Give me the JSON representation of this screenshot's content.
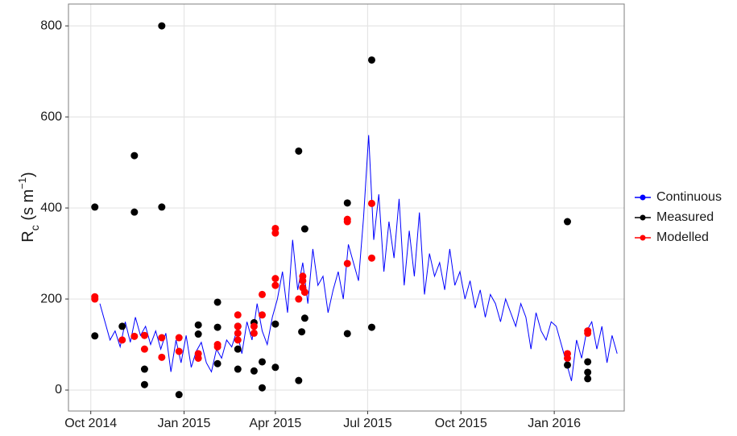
{
  "chart_data": {
    "type": "line",
    "ylabel_parts": [
      "R",
      "c",
      " (s m",
      "−1",
      ")"
    ],
    "xlim": [
      "2014-09-09",
      "2016-03-10"
    ],
    "xticks": [
      {
        "value": "2014-10-01",
        "label": "Oct 2014"
      },
      {
        "value": "2015-01-01",
        "label": "Jan 2015"
      },
      {
        "value": "2015-04-01",
        "label": "Apr 2015"
      },
      {
        "value": "2015-07-01",
        "label": "Jul 2015"
      },
      {
        "value": "2015-10-01",
        "label": "Oct 2015"
      },
      {
        "value": "2016-01-01",
        "label": "Jan 2016"
      }
    ],
    "ylim": [
      -46,
      848
    ],
    "yticks": [
      0,
      200,
      400,
      600,
      800
    ],
    "grid": true,
    "legend": "right",
    "series": [
      {
        "name": "Continuous",
        "color": "#0000ff",
        "mode": "line",
        "x": [
          "2014-10-10",
          "2014-10-15",
          "2014-10-20",
          "2014-10-25",
          "2014-10-30",
          "2014-11-04",
          "2014-11-09",
          "2014-11-14",
          "2014-11-19",
          "2014-11-24",
          "2014-11-29",
          "2014-12-04",
          "2014-12-09",
          "2014-12-14",
          "2014-12-19",
          "2014-12-24",
          "2014-12-29",
          "2015-01-03",
          "2015-01-08",
          "2015-01-13",
          "2015-01-18",
          "2015-01-23",
          "2015-01-28",
          "2015-02-02",
          "2015-02-07",
          "2015-02-12",
          "2015-02-17",
          "2015-02-22",
          "2015-02-27",
          "2015-03-04",
          "2015-03-09",
          "2015-03-14",
          "2015-03-19",
          "2015-03-24",
          "2015-03-29",
          "2015-04-03",
          "2015-04-08",
          "2015-04-13",
          "2015-04-18",
          "2015-04-23",
          "2015-04-28",
          "2015-05-03",
          "2015-05-08",
          "2015-05-13",
          "2015-05-18",
          "2015-05-23",
          "2015-05-28",
          "2015-06-02",
          "2015-06-07",
          "2015-06-12",
          "2015-06-17",
          "2015-06-22",
          "2015-06-27",
          "2015-07-02",
          "2015-07-07",
          "2015-07-12",
          "2015-07-17",
          "2015-07-22",
          "2015-07-27",
          "2015-08-01",
          "2015-08-06",
          "2015-08-11",
          "2015-08-16",
          "2015-08-21",
          "2015-08-26",
          "2015-08-31",
          "2015-09-05",
          "2015-09-10",
          "2015-09-15",
          "2015-09-20",
          "2015-09-25",
          "2015-09-30",
          "2015-10-05",
          "2015-10-10",
          "2015-10-15",
          "2015-10-20",
          "2015-10-25",
          "2015-10-30",
          "2015-11-04",
          "2015-11-09",
          "2015-11-14",
          "2015-11-19",
          "2015-11-24",
          "2015-11-29",
          "2015-12-04",
          "2015-12-09",
          "2015-12-14",
          "2015-12-19",
          "2015-12-24",
          "2015-12-29",
          "2016-01-03",
          "2016-01-08",
          "2016-01-13",
          "2016-01-18",
          "2016-01-23",
          "2016-01-28",
          "2016-02-02",
          "2016-02-07",
          "2016-02-12",
          "2016-02-17",
          "2016-02-22",
          "2016-02-27",
          "2016-03-03"
        ],
        "values": [
          190,
          150,
          110,
          130,
          95,
          150,
          105,
          160,
          120,
          140,
          100,
          130,
          90,
          125,
          40,
          110,
          60,
          120,
          50,
          85,
          105,
          60,
          40,
          90,
          70,
          110,
          95,
          130,
          80,
          150,
          110,
          190,
          130,
          100,
          160,
          200,
          260,
          170,
          330,
          220,
          280,
          190,
          310,
          230,
          250,
          170,
          220,
          260,
          200,
          320,
          280,
          240,
          380,
          560,
          330,
          430,
          260,
          370,
          290,
          420,
          230,
          350,
          250,
          390,
          210,
          300,
          250,
          280,
          220,
          310,
          230,
          260,
          200,
          240,
          180,
          220,
          160,
          210,
          190,
          150,
          200,
          170,
          140,
          190,
          160,
          90,
          170,
          130,
          110,
          150,
          140,
          100,
          60,
          20,
          110,
          70,
          130,
          150,
          90,
          140,
          60,
          120,
          80
        ]
      },
      {
        "name": "Measured",
        "color": "#000000",
        "mode": "points",
        "x": [
          "2014-10-05",
          "2014-10-05",
          "2014-11-01",
          "2014-11-13",
          "2014-11-13",
          "2014-11-23",
          "2014-11-23",
          "2014-12-10",
          "2014-12-10",
          "2014-12-27",
          "2015-01-15",
          "2015-01-15",
          "2015-02-03",
          "2015-02-03",
          "2015-02-03",
          "2015-02-23",
          "2015-02-23",
          "2015-02-23",
          "2015-03-11",
          "2015-03-11",
          "2015-03-19",
          "2015-03-19",
          "2015-04-01",
          "2015-04-01",
          "2015-04-24",
          "2015-04-24",
          "2015-04-27",
          "2015-04-30",
          "2015-04-30",
          "2015-06-11",
          "2015-06-11",
          "2015-07-05",
          "2015-07-05",
          "2016-01-14",
          "2016-01-14",
          "2016-02-03",
          "2016-02-03",
          "2016-02-03"
        ],
        "values": [
          402,
          119,
          140,
          515,
          391,
          46,
          12,
          800,
          402,
          -10,
          143,
          123,
          193,
          138,
          58,
          140,
          90,
          46,
          148,
          42,
          5,
          62,
          145,
          50,
          525,
          21,
          128,
          354,
          158,
          411,
          124,
          725,
          138,
          370,
          55,
          39,
          25,
          62
        ]
      },
      {
        "name": "Modelled",
        "color": "#ff0000",
        "mode": "points",
        "x": [
          "2014-10-05",
          "2014-10-05",
          "2014-11-01",
          "2014-11-13",
          "2014-11-23",
          "2014-11-23",
          "2014-12-10",
          "2014-12-10",
          "2014-12-27",
          "2014-12-27",
          "2015-01-15",
          "2015-01-15",
          "2015-02-03",
          "2015-02-03",
          "2015-02-23",
          "2015-02-23",
          "2015-02-23",
          "2015-02-23",
          "2015-03-11",
          "2015-03-11",
          "2015-03-19",
          "2015-03-19",
          "2015-04-01",
          "2015-04-01",
          "2015-04-01",
          "2015-04-01",
          "2015-04-24",
          "2015-04-28",
          "2015-04-28",
          "2015-04-28",
          "2015-04-30",
          "2015-06-11",
          "2015-06-11",
          "2015-06-11",
          "2015-07-05",
          "2015-07-05",
          "2016-01-14",
          "2016-01-14",
          "2016-02-03",
          "2016-02-03"
        ],
        "values": [
          205,
          200,
          110,
          118,
          120,
          90,
          115,
          72,
          85,
          115,
          80,
          70,
          95,
          100,
          165,
          140,
          125,
          110,
          140,
          125,
          210,
          165,
          355,
          345,
          245,
          230,
          200,
          240,
          225,
          250,
          215,
          375,
          370,
          278,
          410,
          290,
          80,
          70,
          130,
          125
        ]
      }
    ]
  }
}
